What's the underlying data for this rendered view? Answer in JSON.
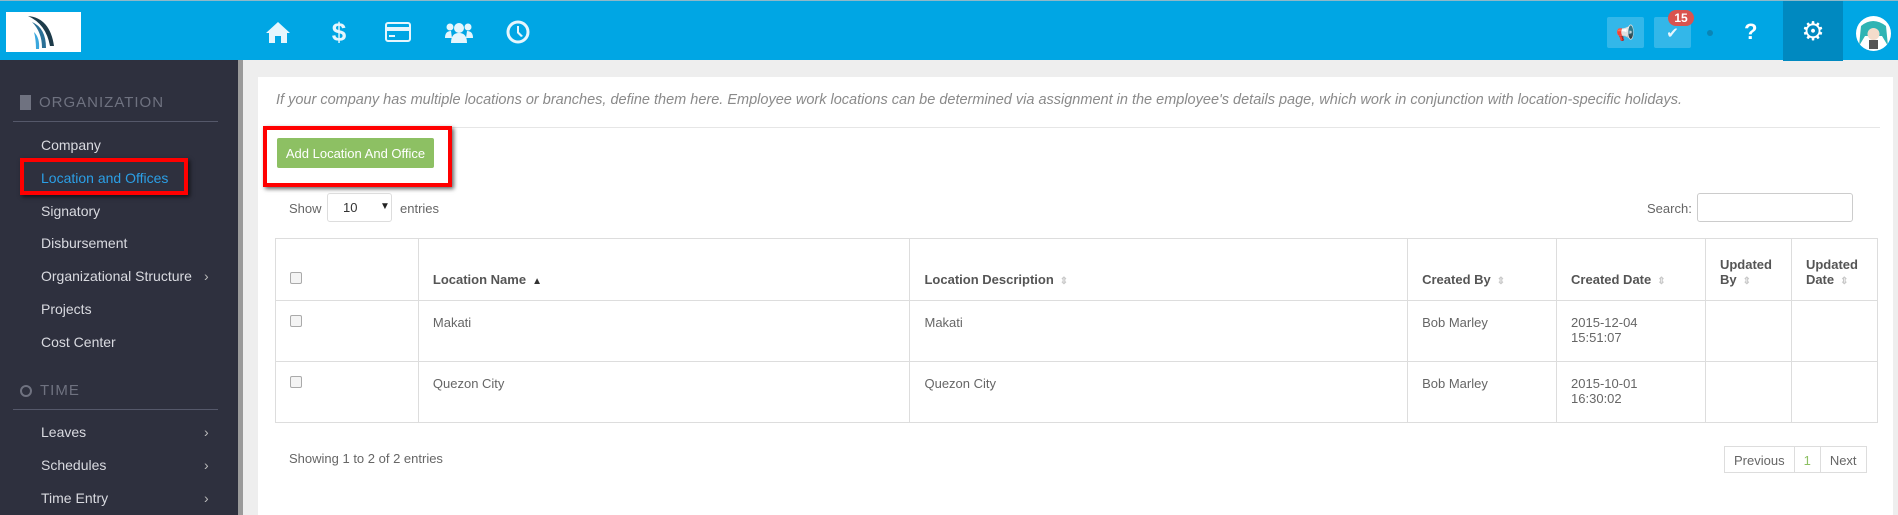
{
  "topbar": {
    "nav_icons": [
      "home-icon",
      "dollar-icon",
      "credit-card-icon",
      "users-icon",
      "clock-icon"
    ],
    "notification_count": "15",
    "help_label": "?",
    "brand_color": "#00a6e4"
  },
  "sidebar": {
    "sections": [
      {
        "title": "ORGANIZATION",
        "icon": "building-icon",
        "items": [
          {
            "label": "Company"
          },
          {
            "label": "Location and Offices",
            "active": true
          },
          {
            "label": "Signatory"
          },
          {
            "label": "Disbursement"
          },
          {
            "label": "Organizational Structure",
            "submenu": true
          },
          {
            "label": "Projects"
          },
          {
            "label": "Cost Center"
          }
        ]
      },
      {
        "title": "TIME",
        "icon": "clock-icon",
        "items": [
          {
            "label": "Leaves",
            "submenu": true
          },
          {
            "label": "Schedules",
            "submenu": true
          },
          {
            "label": "Time Entry",
            "submenu": true
          }
        ]
      }
    ]
  },
  "main": {
    "description": "If your company has multiple locations or branches, define them here. Employee work locations can be determined via assignment in the employee's details page, which work in conjunction with location-specific holidays.",
    "add_button": "Add Location And Office",
    "show_label": "Show",
    "page_size": "10",
    "entries_label": "entries",
    "search_label": "Search:",
    "search_value": "",
    "table": {
      "headers": [
        "Location Name",
        "Location Description",
        "Created By",
        "Created Date",
        "Updated By",
        "Updated Date"
      ],
      "rows": [
        [
          "Makati",
          "Makati",
          "Bob Marley",
          "2015-12-04 15:51:07",
          "",
          ""
        ],
        [
          "Quezon City",
          "Quezon City",
          "Bob Marley",
          "2015-10-01 16:30:02",
          "",
          ""
        ]
      ]
    },
    "showing": "Showing 1 to 2 of 2 entries",
    "pager": {
      "prev": "Previous",
      "page": "1",
      "next": "Next"
    }
  }
}
